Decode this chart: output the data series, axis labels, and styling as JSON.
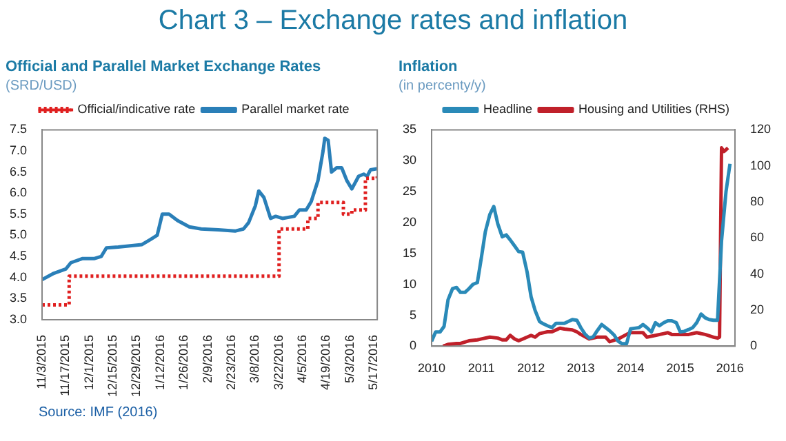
{
  "chart_data": [
    {
      "type": "other",
      "title": "Chart 3 – Exchange rates and inflation",
      "annotations": [
        "Source: IMF (2016)"
      ]
    },
    {
      "type": "line",
      "title": "Official and Parallel Market Exchange Rates",
      "subtitle": "(SRD/USD)",
      "legend": "top",
      "grid": false,
      "marker": "none",
      "xlim": [
        "2015-11-03",
        "2016-05-19"
      ],
      "xticks": [
        {
          "value": "2015-11-03",
          "label": "11/3/2015"
        },
        {
          "value": "2015-11-17",
          "label": "11/17/2015"
        },
        {
          "value": "2015-12-01",
          "label": "12/1/2015"
        },
        {
          "value": "2015-12-15",
          "label": "12/15/2015"
        },
        {
          "value": "2015-12-29",
          "label": "12/29/2015"
        },
        {
          "value": "2016-01-12",
          "label": "1/12/2016"
        },
        {
          "value": "2016-01-26",
          "label": "1/26/2016"
        },
        {
          "value": "2016-02-09",
          "label": "2/9/2016"
        },
        {
          "value": "2016-02-23",
          "label": "2/23/2016"
        },
        {
          "value": "2016-03-08",
          "label": "3/8/2016"
        },
        {
          "value": "2016-03-22",
          "label": "3/22/2016"
        },
        {
          "value": "2016-04-05",
          "label": "4/5/2016"
        },
        {
          "value": "2016-04-19",
          "label": "4/19/2016"
        },
        {
          "value": "2016-05-03",
          "label": "5/3/2016"
        },
        {
          "value": "2016-05-17",
          "label": "5/17/2016"
        }
      ],
      "ylim": [
        3,
        7.5
      ],
      "yticks": [
        {
          "value": 3,
          "label": "3.0"
        },
        {
          "value": 3.5,
          "label": "3.5"
        },
        {
          "value": 4,
          "label": "4.0"
        },
        {
          "value": 4.5,
          "label": "4.5"
        },
        {
          "value": 5,
          "label": "5.0"
        },
        {
          "value": 5.5,
          "label": "5.5"
        },
        {
          "value": 6,
          "label": "6.0"
        },
        {
          "value": 6.5,
          "label": "6.5"
        },
        {
          "value": 7,
          "label": "7.0"
        },
        {
          "value": 7.5,
          "label": "7.5"
        }
      ],
      "series": [
        {
          "name": "Official/indicative rate",
          "type": "step",
          "color": "#e02020",
          "line_style": "dotted",
          "x": [
            "2015-11-03",
            "2015-11-19",
            "2016-03-22",
            "2016-04-08",
            "2016-04-14",
            "2016-04-29",
            "2016-05-04",
            "2016-05-12",
            "2016-05-19"
          ],
          "values": [
            3.35,
            4.03,
            5.15,
            5.4,
            5.78,
            5.5,
            5.6,
            6.35,
            6.4
          ]
        },
        {
          "name": "Parallel market rate",
          "type": "line",
          "color": "#2a7fb8",
          "line_style": "solid",
          "x": [
            "2015-11-03",
            "2015-11-10",
            "2015-11-17",
            "2015-11-20",
            "2015-11-27",
            "2015-12-04",
            "2015-12-08",
            "2015-12-11",
            "2015-12-18",
            "2015-12-25",
            "2016-01-01",
            "2016-01-06",
            "2016-01-10",
            "2016-01-13",
            "2016-01-17",
            "2016-01-22",
            "2016-01-29",
            "2016-02-05",
            "2016-02-15",
            "2016-02-25",
            "2016-03-01",
            "2016-03-04",
            "2016-03-08",
            "2016-03-10",
            "2016-03-13",
            "2016-03-17",
            "2016-03-20",
            "2016-03-24",
            "2016-03-31",
            "2016-04-03",
            "2016-04-07",
            "2016-04-10",
            "2016-04-14",
            "2016-04-17",
            "2016-04-18",
            "2016-04-20",
            "2016-04-22",
            "2016-04-25",
            "2016-04-28",
            "2016-05-01",
            "2016-05-04",
            "2016-05-08",
            "2016-05-11",
            "2016-05-13",
            "2016-05-15",
            "2016-05-19"
          ],
          "values": [
            3.95,
            4.1,
            4.2,
            4.35,
            4.45,
            4.45,
            4.5,
            4.7,
            4.72,
            4.75,
            4.78,
            4.9,
            5.0,
            5.5,
            5.5,
            5.35,
            5.2,
            5.15,
            5.13,
            5.1,
            5.15,
            5.3,
            5.7,
            6.05,
            5.9,
            5.4,
            5.45,
            5.4,
            5.45,
            5.6,
            5.6,
            5.8,
            6.3,
            7.0,
            7.3,
            7.25,
            6.5,
            6.6,
            6.6,
            6.3,
            6.1,
            6.4,
            6.45,
            6.4,
            6.55,
            6.58
          ]
        }
      ]
    },
    {
      "type": "line",
      "title": "Inflation",
      "subtitle": "(in percenty/y)",
      "legend": "top",
      "grid": false,
      "marker": "none",
      "xlim": [
        2010,
        2016.1
      ],
      "xticks": [
        2010,
        2011,
        2012,
        2013,
        2014,
        2015,
        2016
      ],
      "ylim": [
        0,
        35
      ],
      "yticks": [
        0,
        5,
        10,
        15,
        20,
        25,
        30,
        35
      ],
      "y2lim": [
        0,
        120
      ],
      "y2ticks": [
        0,
        20,
        40,
        60,
        80,
        100,
        120
      ],
      "series": [
        {
          "name": "Headline",
          "color": "#2a8ab8",
          "x": [
            2010.0,
            2010.08,
            2010.17,
            2010.25,
            2010.33,
            2010.42,
            2010.5,
            2010.58,
            2010.67,
            2010.75,
            2010.83,
            2010.92,
            2011.0,
            2011.08,
            2011.17,
            2011.25,
            2011.33,
            2011.42,
            2011.5,
            2011.58,
            2011.67,
            2011.75,
            2011.83,
            2011.92,
            2012.0,
            2012.08,
            2012.17,
            2012.25,
            2012.33,
            2012.42,
            2012.5,
            2012.58,
            2012.67,
            2012.75,
            2012.83,
            2012.92,
            2013.0,
            2013.08,
            2013.17,
            2013.25,
            2013.33,
            2013.42,
            2013.5,
            2013.58,
            2013.67,
            2013.75,
            2013.83,
            2013.92,
            2014.0,
            2014.08,
            2014.17,
            2014.25,
            2014.33,
            2014.42,
            2014.5,
            2014.58,
            2014.67,
            2014.75,
            2014.83,
            2014.92,
            2015.0,
            2015.08,
            2015.17,
            2015.25,
            2015.33,
            2015.42,
            2015.5,
            2015.58,
            2015.67,
            2015.75,
            2015.83,
            2015.92,
            2016.0
          ],
          "values": [
            0.8,
            2.3,
            2.3,
            3.2,
            7.5,
            9.3,
            9.5,
            8.7,
            8.7,
            9.3,
            10,
            10.3,
            14.3,
            18.5,
            21.3,
            22.6,
            19.8,
            17.7,
            18,
            17.2,
            16.2,
            15.3,
            15.2,
            12,
            8,
            5.8,
            4,
            3.6,
            3.3,
            3,
            3.7,
            3.7,
            3.7,
            4,
            4.3,
            4.2,
            3,
            2,
            1.3,
            1.5,
            2.5,
            3.5,
            3,
            2.5,
            1.8,
            0.8,
            0.4,
            0.4,
            2.8,
            2.9,
            3,
            3.5,
            3,
            2.3,
            3.8,
            3.3,
            3.8,
            4.1,
            4.1,
            3.8,
            2.3,
            2.4,
            2.7,
            3,
            3.8,
            5.2,
            4.6,
            4.3,
            4.2,
            4.2,
            17,
            25,
            29.5
          ]
        },
        {
          "name": "Housing and Utilities (RHS)",
          "color": "#c0202a",
          "axis": "y2",
          "x": [
            2010.23,
            2010.33,
            2010.5,
            2010.58,
            2010.75,
            2010.92,
            2011.0,
            2011.17,
            2011.33,
            2011.42,
            2011.5,
            2011.58,
            2011.67,
            2011.75,
            2011.92,
            2012.0,
            2012.08,
            2012.17,
            2012.33,
            2012.42,
            2012.5,
            2012.58,
            2012.67,
            2012.83,
            2012.92,
            2013.0,
            2013.17,
            2013.33,
            2013.5,
            2013.58,
            2013.75,
            2013.92,
            2014.0,
            2014.17,
            2014.25,
            2014.33,
            2014.5,
            2014.67,
            2014.75,
            2014.83,
            2014.92,
            2015.08,
            2015.17,
            2015.33,
            2015.5,
            2015.67,
            2015.75,
            2015.79,
            2015.83,
            2015.88,
            2015.96
          ],
          "values": [
            0,
            1,
            1.5,
            1.5,
            3,
            3.5,
            4,
            5,
            4.5,
            3.5,
            3.5,
            6,
            4,
            3,
            5,
            6,
            5,
            7,
            8,
            8,
            9,
            10,
            9.5,
            9,
            8,
            6.5,
            4,
            5,
            5,
            2.5,
            4,
            6.5,
            7.5,
            7.5,
            7.5,
            5,
            6,
            7,
            7.5,
            6.5,
            6.5,
            6.5,
            6.5,
            7.5,
            6.5,
            5,
            4.5,
            5,
            110,
            108,
            110
          ]
        }
      ]
    }
  ]
}
